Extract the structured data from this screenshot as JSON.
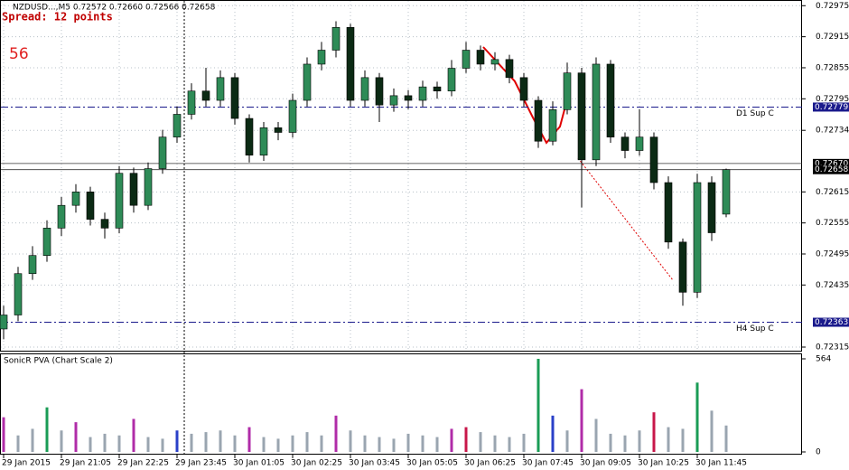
{
  "chart_data": {
    "type": "candlestick",
    "header": "NZDUSD...,M5  0.72572 0.72660 0.72566 0.72658",
    "spread": "Spread: 12 points",
    "counter": "56",
    "indicator": "SonicR PVA  (Chart Scale 2)",
    "categories": [
      "29 Jan 2015",
      null,
      null,
      null,
      "29 Jan 21:05",
      null,
      null,
      null,
      "29 Jan 22:25",
      null,
      null,
      null,
      "29 Jan 23:45",
      null,
      null,
      null,
      "30 Jan 01:05",
      null,
      null,
      null,
      "30 Jan 02:25",
      null,
      null,
      null,
      "30 Jan 03:45",
      null,
      null,
      null,
      "30 Jan 05:05",
      null,
      null,
      null,
      "30 Jan 06:25",
      null,
      null,
      null,
      "30 Jan 07:45",
      null,
      null,
      null,
      "30 Jan 09:05",
      null,
      null,
      null,
      "30 Jan 10:25",
      null,
      null,
      null,
      "30 Jan 11:45",
      null,
      null
    ],
    "open": [
      0.7235,
      0.72377,
      0.72457,
      0.72492,
      0.72545,
      0.72589,
      0.72615,
      0.72562,
      0.72545,
      0.72651,
      0.72589,
      0.7266,
      0.72721,
      0.72765,
      0.7281,
      0.72792,
      0.72836,
      0.72757,
      0.72686,
      0.72739,
      0.7273,
      0.72792,
      0.72862,
      0.72889,
      0.72933,
      0.72792,
      0.72836,
      0.72783,
      0.72801,
      0.72792,
      0.72818,
      0.7281,
      0.72854,
      0.72889,
      0.72862,
      0.72871,
      0.72836,
      0.72792,
      0.72713,
      0.72774,
      0.72845,
      0.72677,
      0.72862,
      0.72721,
      0.72695,
      0.72721,
      0.72633,
      0.72518,
      0.72421,
      0.72633,
      0.72572
    ],
    "high": [
      0.72395,
      0.7247,
      0.7251,
      0.7256,
      0.72605,
      0.7263,
      0.72625,
      0.72575,
      0.72665,
      0.72662,
      0.72672,
      0.72735,
      0.7278,
      0.72825,
      0.72855,
      0.7285,
      0.72845,
      0.72765,
      0.7275,
      0.7275,
      0.72805,
      0.72875,
      0.72905,
      0.72945,
      0.7294,
      0.7285,
      0.72845,
      0.72815,
      0.72812,
      0.7283,
      0.72828,
      0.7287,
      0.72905,
      0.72898,
      0.72885,
      0.7288,
      0.72845,
      0.728,
      0.7279,
      0.72865,
      0.72855,
      0.72875,
      0.7287,
      0.7273,
      0.72775,
      0.7273,
      0.72645,
      0.72525,
      0.7265,
      0.72645,
      0.7266
    ],
    "low": [
      0.7233,
      0.72365,
      0.72445,
      0.7248,
      0.7253,
      0.72575,
      0.7255,
      0.72525,
      0.72535,
      0.72575,
      0.7258,
      0.7265,
      0.7271,
      0.72755,
      0.7278,
      0.7278,
      0.72745,
      0.72672,
      0.72675,
      0.72715,
      0.7272,
      0.7278,
      0.7285,
      0.72875,
      0.7278,
      0.7278,
      0.7275,
      0.7277,
      0.72775,
      0.7278,
      0.72795,
      0.728,
      0.72845,
      0.7285,
      0.7285,
      0.72825,
      0.7278,
      0.727,
      0.72705,
      0.72765,
      0.72585,
      0.72665,
      0.7271,
      0.7268,
      0.72685,
      0.7262,
      0.72505,
      0.72395,
      0.7241,
      0.7252,
      0.72566
    ],
    "close": [
      0.72377,
      0.72457,
      0.72492,
      0.72545,
      0.72589,
      0.72615,
      0.72562,
      0.72545,
      0.72651,
      0.72589,
      0.7266,
      0.72721,
      0.72765,
      0.7281,
      0.72792,
      0.72836,
      0.72757,
      0.72686,
      0.72739,
      0.7273,
      0.72792,
      0.72862,
      0.72889,
      0.72933,
      0.72792,
      0.72836,
      0.72783,
      0.72801,
      0.72792,
      0.72818,
      0.7281,
      0.72854,
      0.72889,
      0.72862,
      0.72871,
      0.72836,
      0.72792,
      0.72713,
      0.72774,
      0.72845,
      0.72677,
      0.72862,
      0.72721,
      0.72695,
      0.72721,
      0.72633,
      0.72518,
      0.72421,
      0.72633,
      0.72536,
      0.72658
    ],
    "up_color": "#2e8b57",
    "down_color": "#0b2a14",
    "ylim": [
      0.72308,
      0.72986
    ],
    "yticks": [
      0.72975,
      0.72915,
      0.72855,
      0.72795,
      0.72734,
      0.72615,
      0.72555,
      0.72495,
      0.72435,
      0.72315
    ],
    "grid": true,
    "levels": [
      {
        "name": "D1 Sup C",
        "value": 0.72779,
        "color": "#1a1a8c"
      },
      {
        "name": "H4 Sup C",
        "value": 0.72363,
        "color": "#1a1a8c"
      }
    ],
    "price_lines": [
      {
        "value": 0.7267,
        "label": "0.72670"
      },
      {
        "value": 0.72658,
        "label": "0.72658"
      }
    ],
    "volume": [
      210,
      100,
      140,
      270,
      130,
      180,
      90,
      110,
      100,
      200,
      90,
      80,
      130,
      110,
      120,
      130,
      100,
      150,
      90,
      80,
      100,
      120,
      100,
      220,
      130,
      100,
      90,
      80,
      110,
      100,
      90,
      140,
      150,
      120,
      100,
      90,
      110,
      564,
      220,
      130,
      380,
      200,
      110,
      100,
      130,
      240,
      150,
      140,
      420,
      250,
      160
    ],
    "volume_colors": [
      "#b02ca8",
      "#9aa5b0",
      "#9aa5b0",
      "#1a9c56",
      "#9aa5b0",
      "#b02ca8",
      "#9aa5b0",
      "#9aa5b0",
      "#9aa5b0",
      "#b02ca8",
      "#9aa5b0",
      "#9aa5b0",
      "#2a40c8",
      "#9aa5b0",
      "#9aa5b0",
      "#9aa5b0",
      "#9aa5b0",
      "#b02ca8",
      "#9aa5b0",
      "#9aa5b0",
      "#9aa5b0",
      "#9aa5b0",
      "#9aa5b0",
      "#b02ca8",
      "#9aa5b0",
      "#9aa5b0",
      "#9aa5b0",
      "#9aa5b0",
      "#9aa5b0",
      "#9aa5b0",
      "#9aa5b0",
      "#b02ca8",
      "#c8174a",
      "#9aa5b0",
      "#9aa5b0",
      "#9aa5b0",
      "#9aa5b0",
      "#1a9c56",
      "#2a40c8",
      "#9aa5b0",
      "#b02ca8",
      "#9aa5b0",
      "#9aa5b0",
      "#9aa5b0",
      "#9aa5b0",
      "#c8174a",
      "#9aa5b0",
      "#9aa5b0",
      "#1a9c56",
      "#9aa5b0",
      "#9aa5b0"
    ],
    "vlim": [
      0,
      564
    ],
    "vticks": [
      564,
      0
    ]
  }
}
